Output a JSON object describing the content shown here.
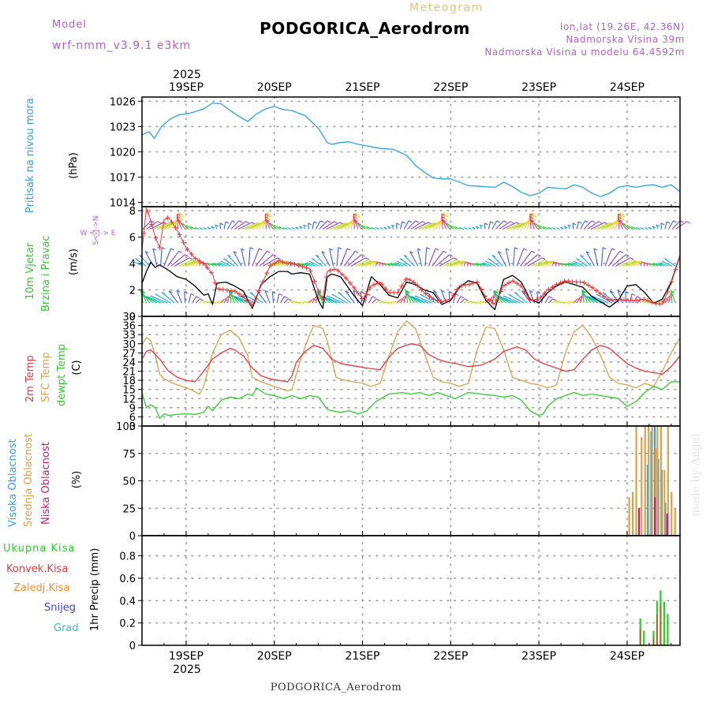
{
  "header": {
    "model_label": "Model",
    "model_name": "wrf-nmm_v3.9.1 e3km",
    "meteogram_label": "Meteogram",
    "station": "PODGORICA_Aerodrom",
    "lonlat": "lon,lat (19.26E, 42.36N)",
    "elevation": "Nadmorska Visina 39m",
    "model_elevation": "Nadmorska Visina u modelu 64.4592m",
    "year": "2025",
    "footer_station": "PODGORICA_Aerodrom",
    "credit": "made by Angel"
  },
  "colors": {
    "pressure": "#29a3e6",
    "t2m": "#e8383b",
    "tsfc": "#d9a24a",
    "dewpt": "#2ecc2e",
    "wind_max": "#e8383b",
    "wind_mean": "#000000",
    "cloud_high": "#29a3e6",
    "cloud_mid": "#d9a24a",
    "cloud_low": "#d4157a",
    "precip_total": "#2ecc2e",
    "precip_conv": "#e8383b",
    "precip_frz": "#ff8c2a",
    "snow": "#4040e0",
    "grad": "#2ec4b6",
    "model_label": "#b060d0",
    "meteogram_label": "#e8c070"
  },
  "chart_data": [
    {
      "id": "pressure",
      "type": "line",
      "ylabel_lines": [
        "Pritisak na nivou mora"
      ],
      "unit": "(hPa)",
      "ylim": [
        1013.5,
        1026.5
      ],
      "yticks": [
        1014,
        1017,
        1020,
        1023,
        1026
      ],
      "x_unit": "days since 19SEP 00UTC",
      "xlim": [
        -0.5,
        5.6
      ],
      "series": [
        {
          "name": "MSLP",
          "x": [
            -0.5,
            -0.42,
            -0.36,
            -0.28,
            -0.18,
            -0.08,
            0.05,
            0.2,
            0.3,
            0.4,
            0.5,
            0.6,
            0.7,
            0.8,
            0.9,
            1.0,
            1.1,
            1.2,
            1.35,
            1.5,
            1.6,
            1.65,
            1.75,
            1.85,
            1.95,
            2.05,
            2.2,
            2.35,
            2.5,
            2.6,
            2.7,
            2.8,
            2.9,
            3.0,
            3.2,
            3.35,
            3.5,
            3.6,
            3.7,
            3.8,
            3.9,
            4.0,
            4.1,
            4.2,
            4.3,
            4.4,
            4.5,
            4.6,
            4.7,
            4.8,
            4.9,
            5.0,
            5.1,
            5.2,
            5.3,
            5.4,
            5.5,
            5.6
          ],
          "values": [
            1022.0,
            1022.4,
            1021.6,
            1023.0,
            1023.9,
            1024.4,
            1024.6,
            1025.1,
            1025.8,
            1025.7,
            1024.9,
            1024.2,
            1023.6,
            1024.5,
            1025.1,
            1025.4,
            1025.0,
            1024.9,
            1024.3,
            1022.8,
            1021.1,
            1020.9,
            1021.1,
            1021.2,
            1020.9,
            1020.7,
            1020.4,
            1020.3,
            1019.6,
            1018.4,
            1017.6,
            1016.9,
            1016.8,
            1016.8,
            1016.0,
            1015.9,
            1015.8,
            1016.4,
            1015.9,
            1015.2,
            1014.8,
            1015.1,
            1015.8,
            1015.7,
            1015.6,
            1016.1,
            1015.8,
            1015.1,
            1014.7,
            1015.1,
            1015.8,
            1016.0,
            1015.8,
            1016.0,
            1016.1,
            1015.8,
            1016.1,
            1015.3
          ]
        }
      ]
    },
    {
      "id": "wind",
      "type": "line",
      "ylabel_lines": [
        "10m Vjetar",
        "Brzina i Pravac"
      ],
      "unit": "(m/s)",
      "compass": "W <-|-> E",
      "compass_ns": [
        "S<-|->N"
      ],
      "ylim": [
        0,
        8.3
      ],
      "yticks": [
        0,
        2,
        4,
        6,
        8
      ],
      "xlim": [
        -0.5,
        5.6
      ],
      "barb_rows": [
        1,
        3.8,
        6.6
      ],
      "series": [
        {
          "name": "Mean speed",
          "x": [
            -0.5,
            -0.45,
            -0.4,
            -0.35,
            -0.3,
            -0.2,
            -0.1,
            0.0,
            0.1,
            0.2,
            0.25,
            0.3,
            0.35,
            0.45,
            0.55,
            0.65,
            0.75,
            0.85,
            0.95,
            1.05,
            1.15,
            1.2,
            1.3,
            1.4,
            1.5,
            1.55,
            1.6,
            1.65,
            1.75,
            1.9,
            2.0,
            2.1,
            2.2,
            2.3,
            2.4,
            2.5,
            2.6,
            2.7,
            2.8,
            2.9,
            3.0,
            3.1,
            3.2,
            3.3,
            3.4,
            3.5,
            3.6,
            3.7,
            3.8,
            3.9,
            4.0,
            4.1,
            4.2,
            4.3,
            4.4,
            4.5,
            4.6,
            4.7,
            4.8,
            4.9,
            5.0,
            5.1,
            5.2,
            5.3,
            5.4,
            5.5,
            5.6
          ],
          "values": [
            2.5,
            3.4,
            4.1,
            3.7,
            3.9,
            3.5,
            3.0,
            2.8,
            2.3,
            1.6,
            1.7,
            0.9,
            2.5,
            2.6,
            2.3,
            1.9,
            0.6,
            2.4,
            3.0,
            3.4,
            3.4,
            3.2,
            3.3,
            3.2,
            1.2,
            0.6,
            3.0,
            3.2,
            3.0,
            1.6,
            0.8,
            3.0,
            2.4,
            1.6,
            1.4,
            2.6,
            2.4,
            2.0,
            1.8,
            0.9,
            1.2,
            2.2,
            2.7,
            2.5,
            1.2,
            0.5,
            2.8,
            3.1,
            2.6,
            1.3,
            1.0,
            1.8,
            2.3,
            2.6,
            2.4,
            2.2,
            1.5,
            1.1,
            0.7,
            1.2,
            2.3,
            2.4,
            1.8,
            1.0,
            1.3,
            2.6,
            4.6
          ]
        },
        {
          "name": "Max gust",
          "x": [
            -0.5,
            -0.45,
            -0.4,
            -0.35,
            -0.3,
            -0.25,
            -0.2,
            -0.1,
            0.0,
            0.1,
            0.2,
            0.3,
            0.35,
            0.45,
            0.55,
            0.65,
            0.75,
            0.85,
            0.95,
            1.05,
            1.15,
            1.2,
            1.3,
            1.4,
            1.5,
            1.55,
            1.6,
            1.7,
            1.8,
            1.9,
            2.0,
            2.1,
            2.2,
            2.3,
            2.4,
            2.5,
            2.6,
            2.7,
            2.8,
            2.9,
            3.0,
            3.1,
            3.2,
            3.3,
            3.4,
            3.5,
            3.6,
            3.7,
            3.8,
            3.9,
            4.0,
            4.1,
            4.2,
            4.3,
            4.4,
            4.5,
            4.6,
            4.7,
            4.8,
            4.9,
            5.0,
            5.1,
            5.2,
            5.3,
            5.4,
            5.5,
            5.6
          ],
          "values": [
            5.0,
            8.2,
            7.2,
            6.0,
            5.2,
            7.3,
            7.5,
            6.5,
            5.2,
            4.4,
            4.0,
            3.2,
            2.1,
            2.0,
            1.9,
            1.5,
            0.8,
            2.3,
            3.8,
            4.2,
            4.0,
            4.0,
            3.8,
            3.6,
            1.9,
            1.3,
            3.4,
            3.6,
            3.0,
            2.2,
            1.3,
            2.3,
            2.6,
            1.8,
            1.8,
            2.9,
            2.5,
            1.8,
            1.3,
            1.1,
            1.3,
            2.3,
            2.4,
            2.6,
            1.4,
            0.9,
            2.3,
            2.7,
            2.3,
            1.2,
            1.3,
            2.0,
            2.4,
            2.7,
            2.6,
            2.6,
            2.2,
            1.7,
            1.2,
            1.3,
            1.2,
            1.2,
            1.3,
            1.0,
            0.9,
            2.5,
            4.6
          ]
        }
      ]
    },
    {
      "id": "temperature",
      "type": "line",
      "ylabel_lines": [
        "2m Temp",
        "SFC Temp",
        "dewpt Temp"
      ],
      "unit": "(C)",
      "ylim": [
        3,
        39
      ],
      "yticks": [
        3,
        6,
        9,
        12,
        15,
        18,
        21,
        24,
        27,
        30,
        33,
        36,
        39
      ],
      "xlim": [
        -0.5,
        5.6
      ],
      "series": [
        {
          "name": "2m Temp",
          "x": [
            -0.5,
            -0.45,
            -0.4,
            -0.3,
            -0.2,
            -0.1,
            0.0,
            0.1,
            0.2,
            0.3,
            0.4,
            0.5,
            0.55,
            0.65,
            0.75,
            0.85,
            0.95,
            1.05,
            1.15,
            1.2,
            1.25,
            1.35,
            1.45,
            1.55,
            1.65,
            1.75,
            1.85,
            1.95,
            2.05,
            2.2,
            2.3,
            2.4,
            2.55,
            2.65,
            2.75,
            2.85,
            2.95,
            3.05,
            3.2,
            3.35,
            3.5,
            3.6,
            3.75,
            3.85,
            3.95,
            4.05,
            4.2,
            4.3,
            4.4,
            4.5,
            4.6,
            4.7,
            4.8,
            4.9,
            5.0,
            5.1,
            5.2,
            5.3,
            5.4,
            5.5,
            5.6
          ],
          "values": [
            25.0,
            27.5,
            28.0,
            25.0,
            21.0,
            19.0,
            18.0,
            17.5,
            21.0,
            25.0,
            27.0,
            28.5,
            28.0,
            26.0,
            22.0,
            19.5,
            18.5,
            18.0,
            17.5,
            19.5,
            24.0,
            27.5,
            29.5,
            28.5,
            25.0,
            23.5,
            23.0,
            22.5,
            22.0,
            21.5,
            25.5,
            28.5,
            30.0,
            29.5,
            26.5,
            25.0,
            24.0,
            23.5,
            22.5,
            23.0,
            25.0,
            27.5,
            29.0,
            28.0,
            25.0,
            23.5,
            22.0,
            21.0,
            21.5,
            25.0,
            28.0,
            29.5,
            28.5,
            26.0,
            23.5,
            22.0,
            21.0,
            20.5,
            20.0,
            22.5,
            26.0
          ]
        },
        {
          "name": "SFC Temp",
          "x": [
            -0.5,
            -0.45,
            -0.4,
            -0.35,
            -0.3,
            -0.25,
            -0.15,
            -0.05,
            0.05,
            0.15,
            0.2,
            0.3,
            0.4,
            0.5,
            0.6,
            0.7,
            0.75,
            0.85,
            0.95,
            1.05,
            1.15,
            1.2,
            1.3,
            1.4,
            1.45,
            1.55,
            1.6,
            1.7,
            1.8,
            1.9,
            2.0,
            2.1,
            2.2,
            2.3,
            2.4,
            2.5,
            2.6,
            2.7,
            2.8,
            2.9,
            3.0,
            3.1,
            3.2,
            3.3,
            3.4,
            3.5,
            3.6,
            3.7,
            3.8,
            3.9,
            4.0,
            4.1,
            4.2,
            4.3,
            4.4,
            4.5,
            4.6,
            4.7,
            4.8,
            4.9,
            5.0,
            5.1,
            5.2,
            5.3,
            5.4,
            5.5,
            5.6
          ],
          "values": [
            30.0,
            32.0,
            31.0,
            26.0,
            20.0,
            18.5,
            17.0,
            16.0,
            15.0,
            13.5,
            16.0,
            27.0,
            33.0,
            34.5,
            32.0,
            26.0,
            19.0,
            17.5,
            16.5,
            15.5,
            14.5,
            15.0,
            25.0,
            33.0,
            36.0,
            35.0,
            31.0,
            19.0,
            18.0,
            17.5,
            17.0,
            16.0,
            17.0,
            26.0,
            34.0,
            37.5,
            35.0,
            27.0,
            19.0,
            17.5,
            17.0,
            16.0,
            17.0,
            28.0,
            35.5,
            35.0,
            28.0,
            19.0,
            18.0,
            17.0,
            16.5,
            15.5,
            16.5,
            27.0,
            34.0,
            36.0,
            32.0,
            26.0,
            19.0,
            17.0,
            16.5,
            15.5,
            17.0,
            16.0,
            21.0,
            27.0,
            32.0
          ]
        },
        {
          "name": "Dewpoint",
          "x": [
            -0.5,
            -0.45,
            -0.4,
            -0.35,
            -0.3,
            -0.25,
            -0.2,
            -0.1,
            0.0,
            0.1,
            0.2,
            0.25,
            0.3,
            0.4,
            0.5,
            0.6,
            0.7,
            0.75,
            0.8,
            0.9,
            1.0,
            1.1,
            1.2,
            1.3,
            1.4,
            1.5,
            1.6,
            1.65,
            1.75,
            1.85,
            1.95,
            2.05,
            2.15,
            2.3,
            2.45,
            2.55,
            2.65,
            2.75,
            2.85,
            2.95,
            3.05,
            3.2,
            3.35,
            3.5,
            3.6,
            3.7,
            3.8,
            3.9,
            4.0,
            4.05,
            4.1,
            4.2,
            4.3,
            4.4,
            4.5,
            4.6,
            4.7,
            4.8,
            4.9,
            5.0,
            5.1,
            5.2,
            5.3,
            5.4,
            5.5,
            5.6
          ],
          "values": [
            14.0,
            9.0,
            10.0,
            9.0,
            5.5,
            7.0,
            6.5,
            6.8,
            7.0,
            6.8,
            7.5,
            9.5,
            8.0,
            11.5,
            12.5,
            12.0,
            13.5,
            13.0,
            15.5,
            13.5,
            13.0,
            12.0,
            13.0,
            12.0,
            13.0,
            12.5,
            8.5,
            8.0,
            7.5,
            8.0,
            7.0,
            8.0,
            11.0,
            13.5,
            14.0,
            13.5,
            14.0,
            13.0,
            14.0,
            13.0,
            12.0,
            14.0,
            13.5,
            13.0,
            12.5,
            13.0,
            11.5,
            8.0,
            6.5,
            7.0,
            9.5,
            12.0,
            13.0,
            14.0,
            13.0,
            13.5,
            13.0,
            12.5,
            12.0,
            9.5,
            11.0,
            14.0,
            16.0,
            15.0,
            17.5,
            17.5
          ]
        }
      ]
    },
    {
      "id": "clouds",
      "type": "bar",
      "ylabel_lines": [
        "Visoka Oblacnost",
        "Srednja Oblacnost",
        "Niska Oblacnost"
      ],
      "unit": "(%)",
      "ylim": [
        0,
        100
      ],
      "yticks": [
        0,
        25,
        50,
        75,
        100
      ],
      "xlim": [
        -0.5,
        5.6
      ],
      "bar_width_days": 0.012,
      "series": [
        {
          "name": "Visoka Oblacnost",
          "x": [
            5.24,
            5.28,
            5.32,
            5.36,
            5.4,
            5.44
          ],
          "values": [
            65,
            95,
            100,
            70,
            60,
            30
          ]
        },
        {
          "name": "Srednja Oblacnost",
          "x": [
            5.02,
            5.06,
            5.1,
            5.16,
            5.2,
            5.24,
            5.28,
            5.32,
            5.34,
            5.38,
            5.42,
            5.46,
            5.5,
            5.54
          ],
          "values": [
            35,
            40,
            100,
            90,
            100,
            100,
            100,
            80,
            100,
            100,
            60,
            100,
            40,
            25
          ]
        },
        {
          "name": "Niska Oblacnost",
          "x": [
            5.12,
            5.3,
            5.44
          ],
          "values": [
            25,
            35,
            20
          ]
        }
      ]
    },
    {
      "id": "precip",
      "type": "bar",
      "ylabel_lines": [
        "1hr Precip (mm)"
      ],
      "unit": "",
      "legend": [
        "Ukupna Kisa",
        "Konvek.Kisa",
        "Zaledj.Kisa",
        "Snijeg",
        "Grad"
      ],
      "ylim": [
        0,
        0.98
      ],
      "yticks": [
        0,
        0.2,
        0.4,
        0.6,
        0.8
      ],
      "xlim": [
        -0.5,
        5.6
      ],
      "bar_width_days": 0.02,
      "series": [
        {
          "name": "Ukupna Kisa",
          "x": [
            5.15,
            5.19,
            5.3,
            5.34,
            5.38,
            5.42,
            5.46
          ],
          "values": [
            0.24,
            0.13,
            0.13,
            0.4,
            0.49,
            0.39,
            0.28
          ]
        },
        {
          "name": "Konvek.Kisa",
          "x": [
            5.15,
            5.3,
            5.34,
            5.38
          ],
          "values": [
            0.14,
            0.07,
            0.27,
            0.36
          ]
        }
      ]
    }
  ],
  "x_axis": {
    "day_labels": [
      "19SEP",
      "20SEP",
      "21SEP",
      "22SEP",
      "23SEP",
      "24SEP"
    ],
    "day_offsets": [
      0,
      1,
      2,
      3,
      4,
      5
    ]
  }
}
